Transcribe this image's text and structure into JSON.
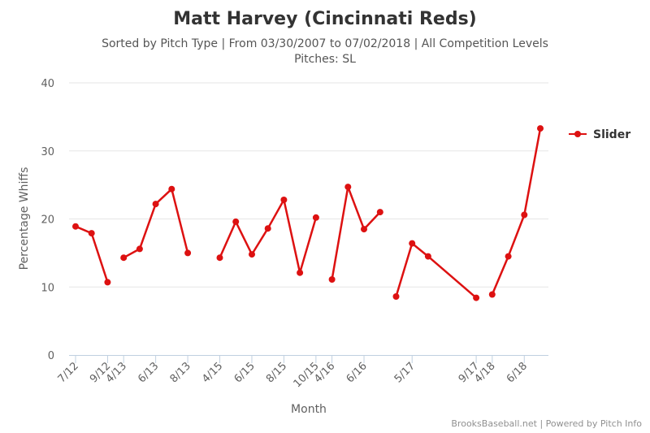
{
  "chart_data": {
    "type": "line",
    "title": "Matt Harvey (Cincinnati Reds)",
    "subtitle_line1": "Sorted by Pitch Type | From 03/30/2007 to 07/02/2018 | All Competition Levels",
    "subtitle_line2": "Pitches: SL",
    "xlabel": "Month",
    "ylabel": "Percentage Whiffs",
    "ylim": [
      0,
      40
    ],
    "yticks": [
      0,
      10,
      20,
      30,
      40
    ],
    "grid": true,
    "legend_position": "right",
    "credits": "BrooksBaseball.net | Powered by Pitch Info",
    "x_tick_labels": [
      "7/12",
      "9/12",
      "4/13",
      "6/13",
      "8/13",
      "4/15",
      "6/15",
      "8/15",
      "10/15",
      "4/16",
      "6/16",
      "5/17",
      "9/17",
      "4/18",
      "6/18"
    ],
    "series": [
      {
        "name": "Slider",
        "color": "#dd1111",
        "segments": [
          [
            [
              "7/12",
              18.9
            ],
            [
              "8/12",
              17.9
            ],
            [
              "9/12",
              10.7
            ]
          ],
          [
            [
              "4/13",
              14.3
            ],
            [
              "5/13",
              15.6
            ],
            [
              "6/13",
              22.2
            ],
            [
              "7/13",
              24.4
            ],
            [
              "8/13",
              15.0
            ]
          ],
          [
            [
              "4/15",
              14.3
            ],
            [
              "5/15",
              19.6
            ],
            [
              "6/15",
              14.8
            ],
            [
              "7/15",
              18.6
            ],
            [
              "8/15",
              22.8
            ],
            [
              "9/15",
              12.1
            ],
            [
              "10/15",
              20.2
            ]
          ],
          [
            [
              "4/16",
              11.1
            ],
            [
              "5/16",
              24.7
            ],
            [
              "6/16",
              18.5
            ],
            [
              "7/16",
              21.0
            ]
          ],
          [
            [
              "4/17",
              8.6
            ],
            [
              "5/17",
              16.4
            ],
            [
              "6/17",
              14.5
            ],
            [
              "9/17",
              8.4
            ]
          ],
          [
            [
              "4/18",
              8.9
            ],
            [
              "5/18",
              14.5
            ],
            [
              "6/18",
              20.6
            ],
            [
              "7/18",
              33.3
            ]
          ]
        ]
      }
    ]
  }
}
